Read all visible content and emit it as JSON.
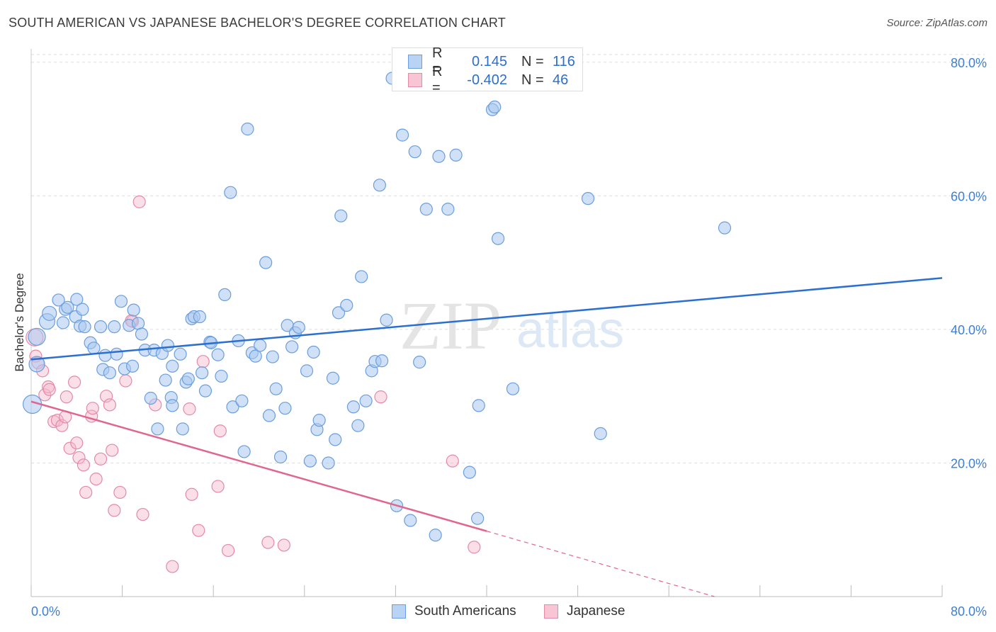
{
  "header": {
    "title": "SOUTH AMERICAN VS JAPANESE BACHELOR'S DEGREE CORRELATION CHART",
    "source": "Source: ZipAtlas.com"
  },
  "watermark": {
    "zip": "ZIP",
    "atlas": "atlas"
  },
  "legend": {
    "r_label": "R =",
    "n_label": "N =",
    "series": [
      {
        "name": "South Americans",
        "r": "0.145",
        "n": "116",
        "fill": "#b9d3f5",
        "stroke": "#6b9ee0"
      },
      {
        "name": "Japanese",
        "r": "-0.402",
        "n": "46",
        "fill": "#f8c5d5",
        "stroke": "#e58aa8"
      }
    ]
  },
  "colors": {
    "blue_dot_fill": "#a9c8f0",
    "blue_dot_stroke": "#6a9edd",
    "blue_line": "#2a6fd1",
    "pink_dot_fill": "#f5b8cc",
    "pink_dot_stroke": "#e48aa8",
    "pink_line": "#e0668f",
    "axis_text": "#3d7fd6",
    "grid": "#dddddd"
  },
  "chart_data": {
    "type": "scatter",
    "title": "SOUTH AMERICAN VS JAPANESE BACHELOR'S DEGREE CORRELATION CHART",
    "xlabel": "",
    "ylabel": "Bachelor's Degree",
    "xlim": [
      0,
      80
    ],
    "ylim": [
      0,
      82
    ],
    "x_tick_labels": [
      "0.0%",
      "80.0%"
    ],
    "y_ticks": [
      20,
      40,
      60,
      80
    ],
    "y_tick_labels": [
      "20.0%",
      "40.0%",
      "60.0%",
      "80.0%"
    ],
    "grid": "horizontal dashed",
    "legend_position": "top-center",
    "series": [
      {
        "name": "South Americans",
        "r": 0.145,
        "n": 116,
        "trend": {
          "x": [
            0,
            80
          ],
          "y": [
            35.5,
            47.7
          ]
        },
        "points": [
          [
            0.1,
            28.8
          ],
          [
            0.5,
            38.9
          ],
          [
            0.5,
            34.8
          ],
          [
            1.4,
            41.2
          ],
          [
            1.6,
            42.4
          ],
          [
            2.4,
            44.4
          ],
          [
            2.8,
            41.0
          ],
          [
            3.0,
            43.0
          ],
          [
            3.2,
            43.3
          ],
          [
            4.0,
            44.5
          ],
          [
            3.9,
            41.9
          ],
          [
            4.3,
            40.5
          ],
          [
            4.5,
            43.0
          ],
          [
            4.7,
            40.4
          ],
          [
            5.2,
            38.0
          ],
          [
            5.5,
            37.2
          ],
          [
            6.1,
            40.4
          ],
          [
            6.5,
            36.1
          ],
          [
            6.3,
            34.0
          ],
          [
            6.9,
            33.5
          ],
          [
            7.3,
            40.4
          ],
          [
            7.5,
            36.3
          ],
          [
            7.9,
            44.2
          ],
          [
            8.2,
            34.1
          ],
          [
            8.6,
            40.6
          ],
          [
            8.9,
            34.5
          ],
          [
            9.0,
            42.9
          ],
          [
            9.4,
            40.9
          ],
          [
            9.7,
            39.3
          ],
          [
            10.0,
            36.9
          ],
          [
            10.5,
            29.7
          ],
          [
            10.8,
            36.9
          ],
          [
            11.1,
            25.1
          ],
          [
            11.5,
            36.4
          ],
          [
            11.8,
            32.4
          ],
          [
            12.0,
            37.6
          ],
          [
            12.3,
            29.8
          ],
          [
            12.4,
            28.6
          ],
          [
            12.4,
            34.5
          ],
          [
            13.1,
            36.3
          ],
          [
            13.3,
            25.1
          ],
          [
            13.6,
            32.1
          ],
          [
            13.8,
            32.6
          ],
          [
            14.1,
            41.6
          ],
          [
            14.3,
            41.9
          ],
          [
            14.8,
            41.9
          ],
          [
            15.0,
            33.5
          ],
          [
            15.3,
            30.8
          ],
          [
            15.7,
            38.1
          ],
          [
            15.8,
            38.0
          ],
          [
            16.4,
            36.2
          ],
          [
            16.7,
            33.0
          ],
          [
            17.0,
            45.2
          ],
          [
            17.5,
            60.5
          ],
          [
            17.7,
            28.4
          ],
          [
            18.2,
            38.3
          ],
          [
            18.5,
            29.3
          ],
          [
            18.7,
            21.7
          ],
          [
            19.0,
            70.0
          ],
          [
            19.4,
            36.5
          ],
          [
            19.7,
            36.0
          ],
          [
            20.1,
            37.6
          ],
          [
            20.6,
            50.0
          ],
          [
            20.9,
            27.1
          ],
          [
            21.2,
            35.9
          ],
          [
            21.5,
            31.1
          ],
          [
            21.9,
            20.9
          ],
          [
            22.3,
            28.2
          ],
          [
            22.5,
            40.6
          ],
          [
            22.9,
            37.4
          ],
          [
            23.2,
            39.5
          ],
          [
            23.5,
            40.3
          ],
          [
            24.2,
            33.8
          ],
          [
            24.5,
            20.3
          ],
          [
            24.8,
            36.6
          ],
          [
            25.1,
            25.0
          ],
          [
            25.3,
            26.4
          ],
          [
            26.1,
            20.0
          ],
          [
            26.5,
            32.7
          ],
          [
            26.7,
            23.5
          ],
          [
            27.0,
            42.5
          ],
          [
            27.2,
            57.0
          ],
          [
            27.7,
            43.6
          ],
          [
            28.3,
            28.4
          ],
          [
            28.7,
            25.6
          ],
          [
            29.0,
            47.9
          ],
          [
            29.4,
            29.3
          ],
          [
            29.9,
            33.8
          ],
          [
            30.2,
            35.2
          ],
          [
            30.6,
            61.6
          ],
          [
            30.8,
            35.3
          ],
          [
            31.2,
            41.4
          ],
          [
            31.7,
            77.6
          ],
          [
            32.1,
            13.6
          ],
          [
            32.6,
            69.1
          ],
          [
            33.3,
            11.4
          ],
          [
            33.7,
            66.6
          ],
          [
            34.1,
            35.1
          ],
          [
            34.7,
            58.0
          ],
          [
            35.5,
            9.2
          ],
          [
            35.8,
            65.9
          ],
          [
            36.6,
            58.0
          ],
          [
            37.3,
            66.1
          ],
          [
            38.5,
            18.6
          ],
          [
            39.2,
            11.7
          ],
          [
            39.3,
            28.6
          ],
          [
            40.5,
            72.9
          ],
          [
            40.7,
            73.3
          ],
          [
            41.0,
            53.6
          ],
          [
            42.3,
            31.1
          ],
          [
            48.9,
            59.6
          ],
          [
            50.0,
            24.4
          ],
          [
            60.9,
            55.2
          ]
        ]
      },
      {
        "name": "Japanese",
        "r": -0.402,
        "n": 46,
        "trend": {
          "x": [
            0,
            40.0
          ],
          "y": [
            29.2,
            9.8
          ]
        },
        "trend_dashed": {
          "x": [
            40.0,
            60.0
          ],
          "y": [
            9.8,
            0.0
          ]
        },
        "points": [
          [
            0.3,
            38.8
          ],
          [
            0.4,
            36.0
          ],
          [
            0.6,
            35.0
          ],
          [
            1.0,
            33.8
          ],
          [
            1.2,
            30.2
          ],
          [
            1.5,
            31.4
          ],
          [
            1.6,
            31.0
          ],
          [
            2.0,
            26.2
          ],
          [
            2.3,
            26.4
          ],
          [
            2.7,
            25.6
          ],
          [
            3.0,
            26.9
          ],
          [
            3.1,
            29.9
          ],
          [
            3.4,
            22.2
          ],
          [
            3.8,
            32.1
          ],
          [
            4.0,
            23.0
          ],
          [
            4.2,
            20.8
          ],
          [
            4.6,
            19.7
          ],
          [
            4.8,
            15.6
          ],
          [
            5.3,
            27.0
          ],
          [
            5.4,
            28.2
          ],
          [
            5.7,
            17.6
          ],
          [
            6.1,
            20.6
          ],
          [
            6.6,
            30.0
          ],
          [
            6.9,
            28.7
          ],
          [
            7.1,
            21.9
          ],
          [
            7.3,
            12.9
          ],
          [
            7.8,
            15.6
          ],
          [
            8.3,
            32.3
          ],
          [
            8.9,
            41.2
          ],
          [
            9.5,
            59.1
          ],
          [
            9.8,
            12.3
          ],
          [
            10.9,
            28.7
          ],
          [
            12.4,
            4.5
          ],
          [
            13.9,
            28.1
          ],
          [
            14.1,
            15.3
          ],
          [
            14.7,
            9.9
          ],
          [
            15.1,
            35.2
          ],
          [
            16.4,
            16.5
          ],
          [
            16.6,
            24.8
          ],
          [
            17.3,
            6.9
          ],
          [
            20.8,
            8.1
          ],
          [
            22.2,
            7.7
          ],
          [
            30.7,
            29.9
          ],
          [
            37.0,
            20.3
          ],
          [
            38.9,
            7.4
          ],
          [
            8.8,
            41.3
          ]
        ]
      }
    ]
  }
}
